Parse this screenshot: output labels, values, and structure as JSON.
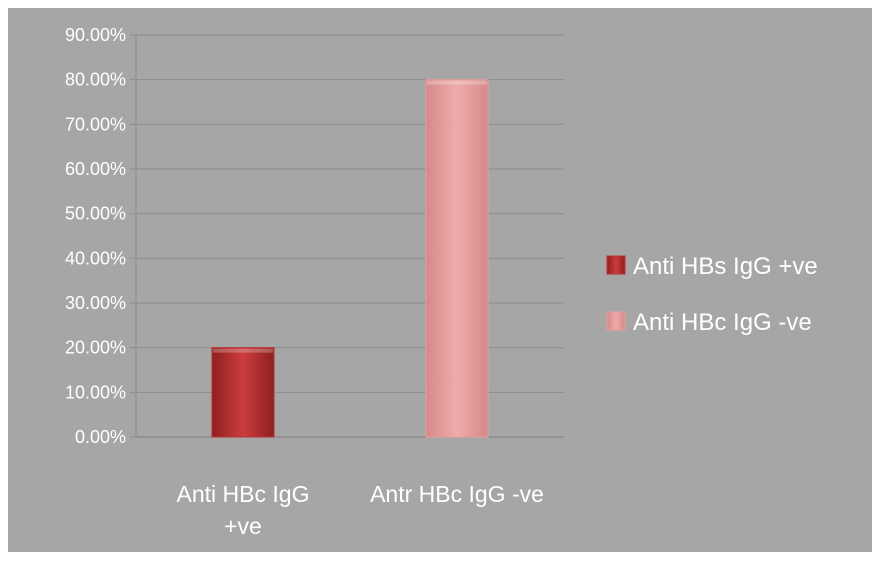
{
  "chart_data": {
    "type": "bar",
    "categories": [
      "Anti HBc IgG +ve",
      "Antr HBc IgG -ve"
    ],
    "category_label_lines": [
      [
        "Anti HBc IgG",
        "+ve"
      ],
      [
        "Antr HBc IgG -ve"
      ]
    ],
    "values": [
      20,
      80
    ],
    "bar_colors": [
      "#b93232",
      "#e69d9d"
    ],
    "value_format": "percent_2dp",
    "yticks": [
      "0.00%",
      "10.00%",
      "20.00%",
      "30.00%",
      "40.00%",
      "50.00%",
      "60.00%",
      "70.00%",
      "80.00%",
      "90.00%"
    ],
    "ylim": [
      0,
      90
    ],
    "grid": true,
    "legend_position": "right",
    "legend": [
      {
        "name": "Anti HBs IgG +ve",
        "color": "#b93232"
      },
      {
        "name": "Anti HBc IgG -ve",
        "color": "#e69d9d"
      }
    ],
    "background_color": "#a6a6a6",
    "title": "",
    "xlabel": "",
    "ylabel": ""
  }
}
